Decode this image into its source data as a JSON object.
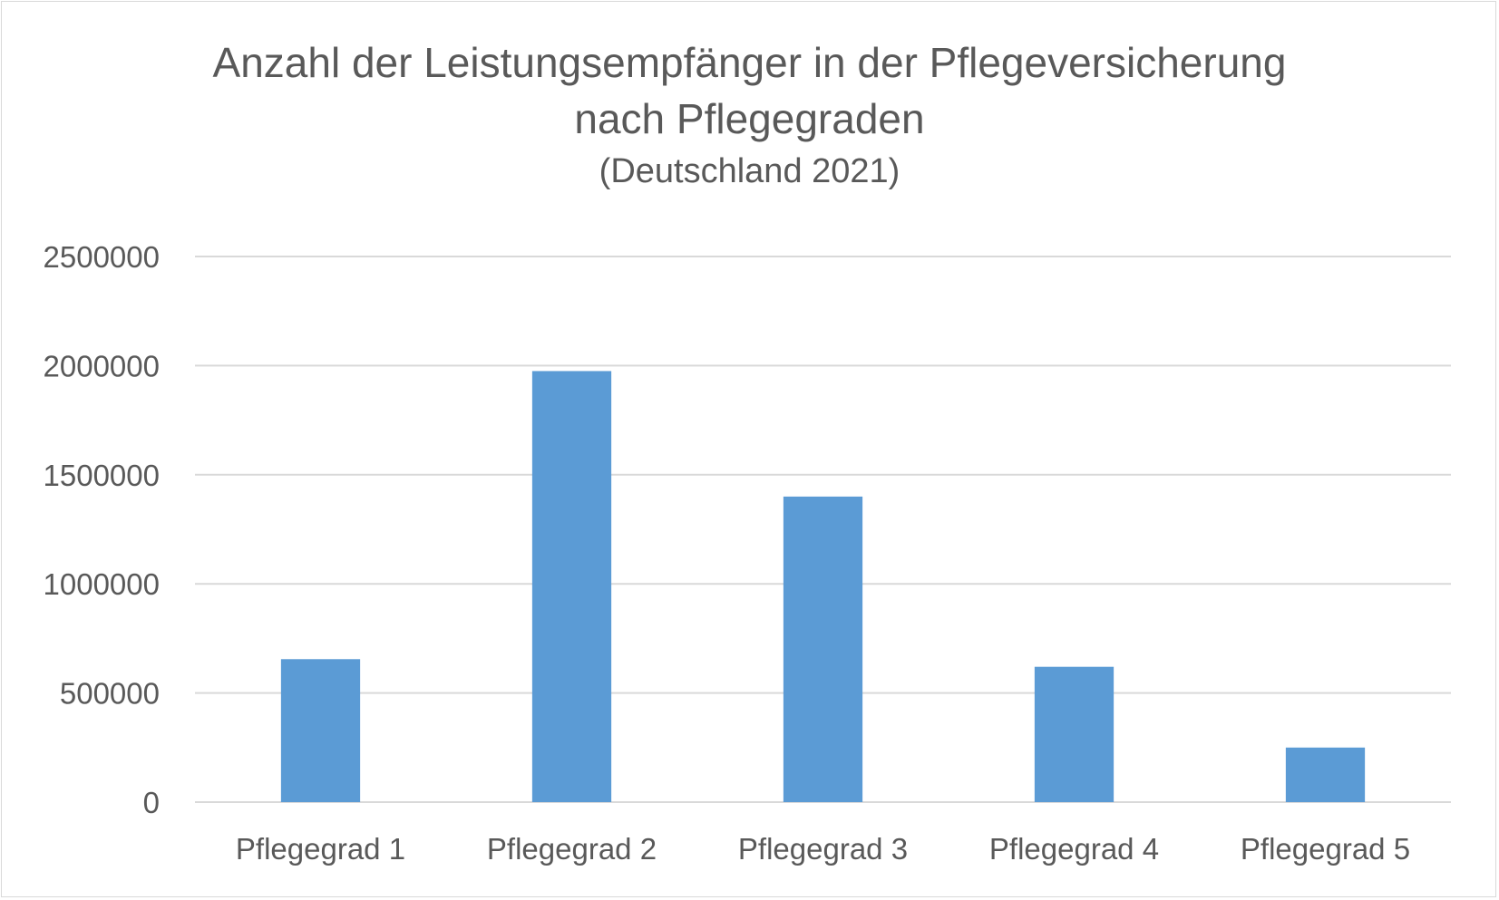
{
  "chart_data": {
    "type": "bar",
    "title_line1": "Anzahl der Leistungsempfänger in der Pflegeversicherung",
    "title_line2": "nach Pflegegraden",
    "subtitle": "(Deutschland 2021)",
    "xlabel": "",
    "ylabel": "",
    "categories": [
      "Pflegegrad 1",
      "Pflegegrad 2",
      "Pflegegrad 3",
      "Pflegegrad 4",
      "Pflegegrad 5"
    ],
    "values": [
      655000,
      1975000,
      1400000,
      620000,
      250000
    ],
    "ylim": [
      0,
      2500000
    ],
    "yticks": [
      "0",
      "500000",
      "1000000",
      "1500000",
      "2000000",
      "2500000"
    ],
    "grid": true,
    "legend": "none",
    "colors": {
      "bar": "#5b9bd5",
      "grid": "#d9d9d9",
      "text": "#595959"
    }
  }
}
